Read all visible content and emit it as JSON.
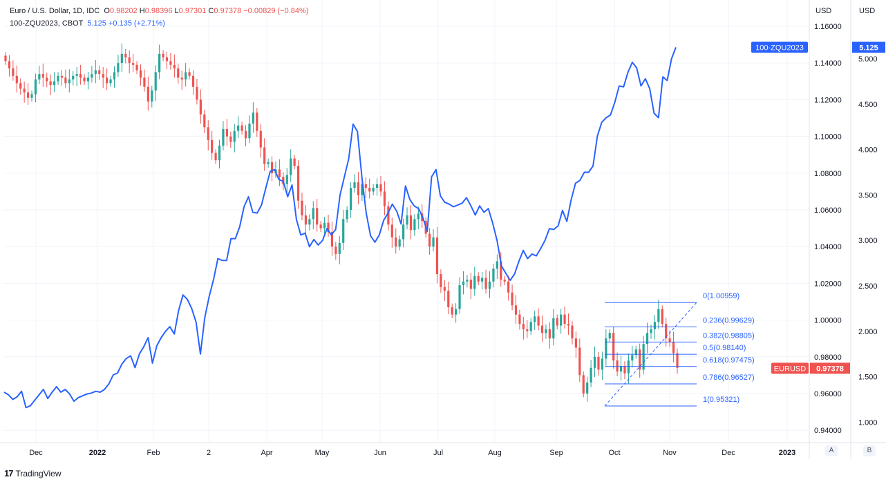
{
  "legend": {
    "symbol": "Euro / U.S. Dollar, 1D, IDC",
    "o_label": "O",
    "o_value": "0.98202",
    "h_label": "H",
    "h_value": "0.98396",
    "l_label": "L",
    "l_value": "0.97301",
    "c_label": "C",
    "c_value": "0.97378",
    "change": "−0.00829 (−0.84%)",
    "overlay_symbol": "100-ZQU2023, CBOT",
    "overlay_value": "5.125",
    "overlay_change": "+0.135 (+2.71%)"
  },
  "axes": {
    "left_unit": "USD",
    "right_unit": "USD",
    "scale_a": "A",
    "scale_b": "B"
  },
  "brand": {
    "logo": "17",
    "name": "TradingView"
  },
  "colors": {
    "up": "#26a69a",
    "down": "#ef5350",
    "overlay": "#2962ff",
    "fib": "#2962ff"
  },
  "chart_data": {
    "type": "line",
    "x_ticks": [
      "Dec",
      "2022",
      "Feb",
      "2",
      "Apr",
      "May",
      "Jun",
      "Jul",
      "Aug",
      "Sep",
      "Oct",
      "Nov",
      "Dec",
      "2023"
    ],
    "y_left_ticks": [
      "1.16000",
      "1.14000",
      "1.12000",
      "1.10000",
      "1.08000",
      "1.06000",
      "1.04000",
      "1.02000",
      "1.00000",
      "0.98000",
      "0.96000",
      "0.94000"
    ],
    "y_left_range": [
      0.932,
      1.17
    ],
    "y_right_ticks": [
      "5.000",
      "4.500",
      "4.000",
      "3.500",
      "3.000",
      "2.500",
      "2.000",
      "1.500",
      "1.000"
    ],
    "y_right_range": [
      0.8,
      5.5
    ],
    "series": [
      {
        "name": "Euro / U.S. Dollar",
        "axis": "left",
        "values": [
          1.141,
          1.137,
          1.133,
          1.129,
          1.126,
          1.124,
          1.121,
          1.123,
          1.131,
          1.134,
          1.132,
          1.13,
          1.128,
          1.13,
          1.133,
          1.132,
          1.129,
          1.131,
          1.133,
          1.134,
          1.132,
          1.13,
          1.132,
          1.134,
          1.136,
          1.134,
          1.132,
          1.129,
          1.131,
          1.135,
          1.14,
          1.145,
          1.143,
          1.14,
          1.139,
          1.136,
          1.132,
          1.127,
          1.119,
          1.125,
          1.135,
          1.145,
          1.143,
          1.141,
          1.139,
          1.137,
          1.132,
          1.131,
          1.135,
          1.133,
          1.127,
          1.12,
          1.112,
          1.105,
          1.098,
          1.091,
          1.087,
          1.095,
          1.104,
          1.1,
          1.097,
          1.103,
          1.106,
          1.103,
          1.099,
          1.107,
          1.113,
          1.103,
          1.094,
          1.085,
          1.086,
          1.08,
          1.082,
          1.078,
          1.074,
          1.079,
          1.088,
          1.084,
          1.065,
          1.057,
          1.052,
          1.055,
          1.061,
          1.052,
          1.05,
          1.053,
          1.048,
          1.04,
          1.036,
          1.042,
          1.055,
          1.06,
          1.072,
          1.075,
          1.068,
          1.074,
          1.072,
          1.07,
          1.072,
          1.074,
          1.07,
          1.062,
          1.052,
          1.045,
          1.04,
          1.044,
          1.052,
          1.057,
          1.049,
          1.055,
          1.058,
          1.054,
          1.047,
          1.04,
          1.045,
          1.025,
          1.018,
          1.016,
          1.007,
          1.003,
          1.006,
          1.019,
          1.021,
          1.022,
          1.017,
          1.024,
          1.021,
          1.023,
          1.017,
          1.021,
          1.028,
          1.032,
          1.022,
          1.021,
          1.015,
          1.008,
          1.003,
          0.998,
          0.995,
          0.994,
          0.999,
          1.002,
          0.997,
          0.993,
          0.995,
          0.99,
          1.001,
          0.997,
          1.003,
          0.998,
          0.997,
          0.99,
          0.985,
          0.97,
          0.96,
          0.966,
          0.974,
          0.98,
          0.973,
          0.979,
          0.99,
          0.993,
          0.978,
          0.972,
          0.975,
          0.971,
          0.978,
          0.981,
          0.984,
          0.973,
          0.987,
          0.993,
          0.995,
          0.999,
          1.006,
          0.998,
          0.99,
          0.988,
          0.982,
          0.974
        ]
      },
      {
        "name": "100-ZQU2023",
        "axis": "right",
        "values": [
          1.33,
          1.3,
          1.25,
          1.28,
          1.34,
          1.16,
          1.18,
          1.24,
          1.3,
          1.36,
          1.26,
          1.33,
          1.39,
          1.33,
          1.36,
          1.31,
          1.23,
          1.27,
          1.29,
          1.31,
          1.32,
          1.34,
          1.33,
          1.36,
          1.42,
          1.52,
          1.54,
          1.64,
          1.7,
          1.73,
          1.6,
          1.75,
          1.83,
          1.93,
          1.65,
          1.84,
          1.93,
          2.0,
          2.05,
          1.97,
          2.23,
          2.4,
          2.35,
          2.25,
          2.1,
          1.75,
          2.15,
          2.38,
          2.57,
          2.8,
          2.78,
          2.78,
          3.02,
          3.02,
          3.15,
          3.37,
          3.48,
          3.31,
          3.3,
          3.39,
          3.58,
          3.76,
          3.78,
          3.67,
          3.65,
          3.48,
          3.61,
          3.23,
          3.06,
          3.08,
          2.93,
          3.01,
          2.95,
          3.0,
          3.13,
          3.06,
          3.12,
          3.5,
          3.7,
          3.9,
          4.28,
          4.2,
          3.7,
          3.3,
          3.05,
          2.98,
          3.06,
          3.22,
          3.3,
          3.4,
          3.32,
          3.18,
          3.6,
          3.45,
          3.38,
          3.35,
          3.25,
          3.1,
          3.7,
          3.78,
          3.49,
          3.42,
          3.4,
          3.37,
          3.39,
          3.41,
          3.47,
          3.38,
          3.28,
          3.38,
          3.31,
          3.35,
          3.19,
          3.0,
          2.72,
          2.64,
          2.56,
          2.63,
          2.77,
          2.89,
          2.8,
          2.85,
          2.83,
          2.91,
          3.0,
          3.13,
          3.12,
          3.16,
          3.33,
          3.21,
          3.45,
          3.63,
          3.66,
          3.75,
          3.75,
          3.82,
          4.15,
          4.3,
          4.35,
          4.38,
          4.52,
          4.7,
          4.69,
          4.85,
          4.96,
          4.9,
          4.7,
          4.78,
          4.67,
          4.4,
          4.35,
          4.8,
          4.76,
          5.0,
          5.125
        ]
      }
    ],
    "fibonacci": [
      {
        "label": "0(1.00959)",
        "value": 1.00959
      },
      {
        "label": "0.236(0.99629)",
        "value": 0.99629
      },
      {
        "label": "0.382(0.98805)",
        "value": 0.98805
      },
      {
        "label": "0.5(0.98140)",
        "value": 0.9814
      },
      {
        "label": "0.618(0.97475)",
        "value": 0.97475
      },
      {
        "label": "0.786(0.96527)",
        "value": 0.96527
      },
      {
        "label": "1(0.95321)",
        "value": 0.95321
      }
    ],
    "price_tags": [
      {
        "label": "100-ZQU2023",
        "value": "5.125",
        "axis": "right"
      },
      {
        "label": "EURUSD",
        "value": "0.97378",
        "axis": "left"
      }
    ]
  }
}
